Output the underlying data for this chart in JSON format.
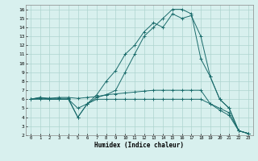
{
  "title": "",
  "xlabel": "Humidex (Indice chaleur)",
  "bg_color": "#d8f0ee",
  "grid_color": "#aed4cf",
  "line_color": "#1a6b6b",
  "xlim": [
    -0.5,
    23.5
  ],
  "ylim": [
    2,
    16.5
  ],
  "xticks": [
    0,
    1,
    2,
    3,
    4,
    5,
    6,
    7,
    8,
    9,
    10,
    11,
    12,
    13,
    14,
    15,
    16,
    17,
    18,
    19,
    20,
    21,
    22,
    23
  ],
  "yticks": [
    2,
    3,
    4,
    5,
    6,
    7,
    8,
    9,
    10,
    11,
    12,
    13,
    14,
    15,
    16
  ],
  "line1": {
    "x": [
      0,
      1,
      2,
      3,
      4,
      5,
      6,
      7,
      8,
      9,
      10,
      11,
      12,
      13,
      14,
      15,
      16,
      17,
      18,
      19,
      20,
      21,
      22,
      23
    ],
    "y": [
      6,
      6.2,
      6.1,
      6.1,
      6.1,
      4.0,
      5.5,
      6.2,
      6.5,
      7.0,
      9.0,
      11.0,
      13.0,
      14.0,
      15.0,
      16.0,
      16.0,
      15.5,
      10.5,
      8.5,
      6.0,
      5.0,
      2.5,
      2.2
    ]
  },
  "line2": {
    "x": [
      0,
      1,
      2,
      3,
      4,
      5,
      6,
      7,
      8,
      9,
      10,
      11,
      12,
      13,
      14,
      15,
      16,
      17,
      18,
      19,
      20,
      21,
      22,
      23
    ],
    "y": [
      6,
      6.1,
      6.1,
      6.2,
      6.2,
      6.1,
      6.2,
      6.3,
      6.5,
      6.6,
      6.7,
      6.8,
      6.9,
      7.0,
      7.0,
      7.0,
      7.0,
      7.0,
      7.0,
      5.5,
      5.0,
      4.5,
      2.5,
      2.2
    ]
  },
  "line3": {
    "x": [
      0,
      1,
      2,
      3,
      4,
      5,
      6,
      7,
      8,
      9,
      10,
      11,
      12,
      13,
      14,
      15,
      16,
      17,
      18,
      19,
      20,
      21,
      22,
      23
    ],
    "y": [
      6,
      6.0,
      6.0,
      6.0,
      6.0,
      5.0,
      5.5,
      6.0,
      6.0,
      6.0,
      6.0,
      6.0,
      6.0,
      6.0,
      6.0,
      6.0,
      6.0,
      6.0,
      6.0,
      5.5,
      4.8,
      4.2,
      2.5,
      2.2
    ]
  },
  "line4": {
    "x": [
      0,
      1,
      2,
      3,
      4,
      5,
      6,
      7,
      8,
      9,
      10,
      11,
      12,
      13,
      14,
      15,
      16,
      17,
      18,
      19,
      20,
      21,
      22,
      23
    ],
    "y": [
      6,
      6.2,
      6.0,
      6.0,
      6.0,
      4.0,
      5.5,
      6.5,
      8.0,
      9.2,
      11.0,
      12.0,
      13.5,
      14.5,
      14.0,
      15.5,
      15.0,
      15.3,
      13.0,
      8.5,
      6.0,
      5.0,
      2.5,
      2.2
    ]
  }
}
